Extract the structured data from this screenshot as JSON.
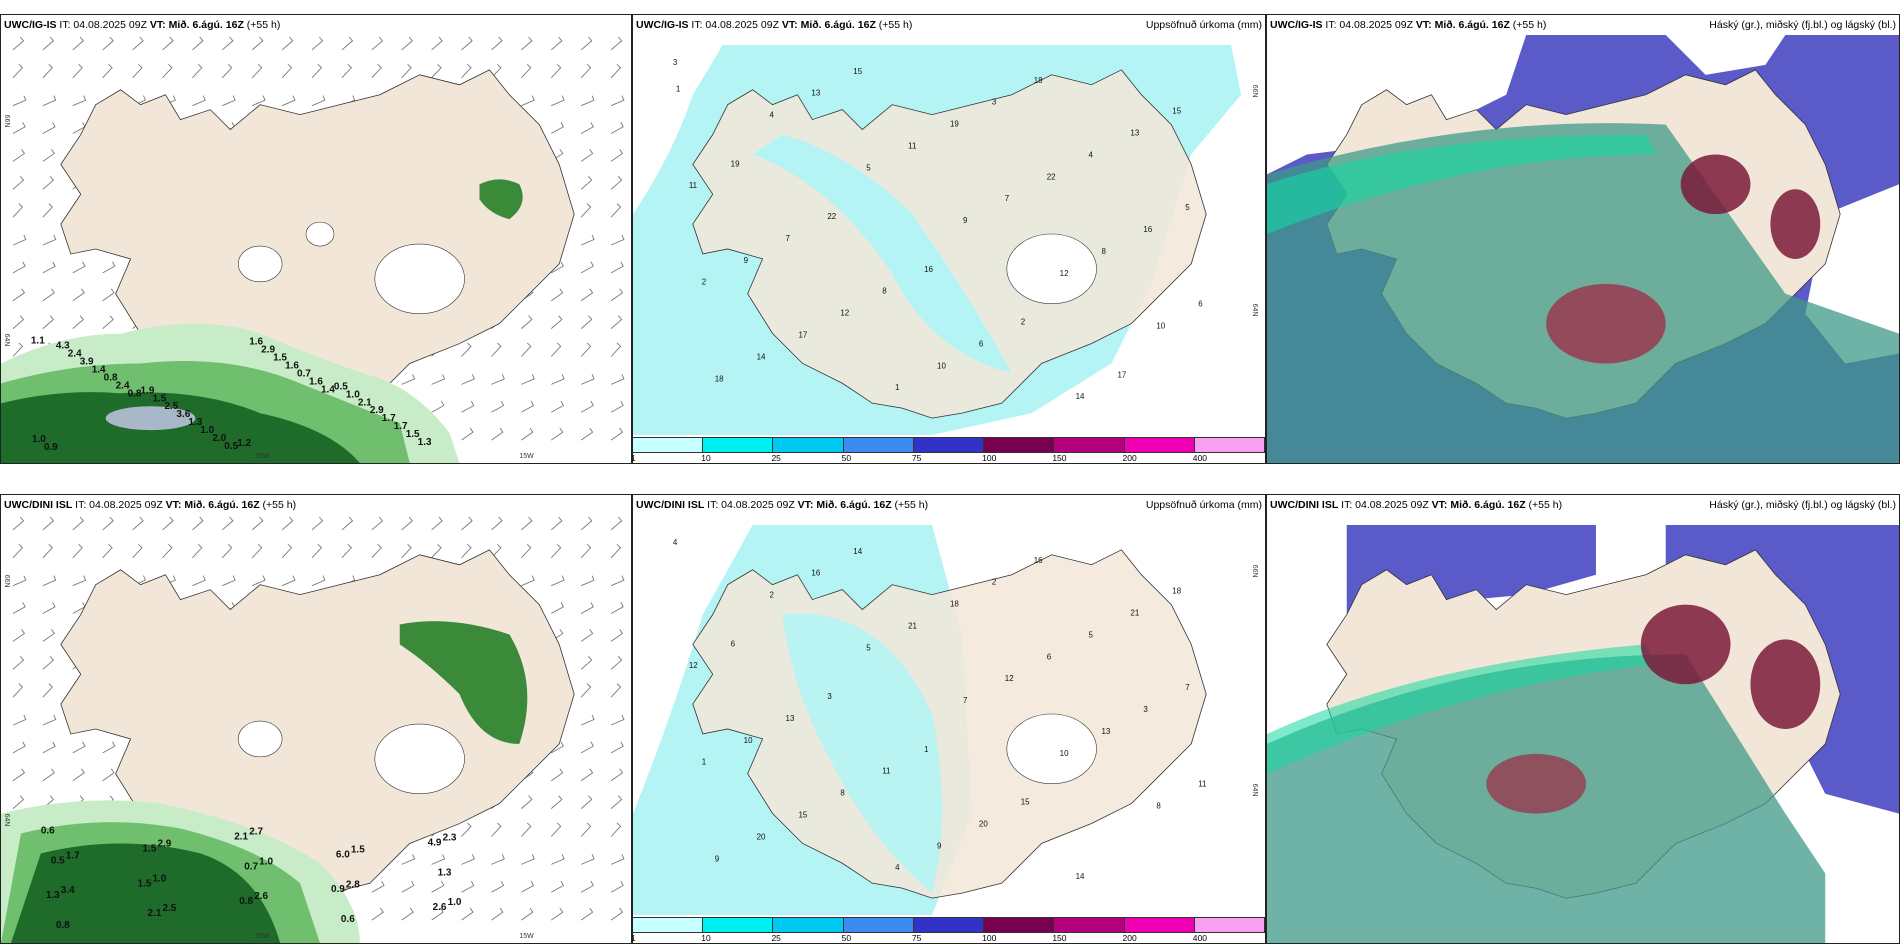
{
  "panels": [
    {
      "model": "UWC/IG-IS",
      "it": "IT: 04.08.2025 09Z",
      "vt": "VT: Mið. 6.ágú. 16Z",
      "lead": "(+55 h)",
      "title_right": ""
    },
    {
      "model": "UWC/IG-IS",
      "it": "IT: 04.08.2025 09Z",
      "vt": "VT: Mið. 6.ágú. 16Z",
      "lead": "(+55 h)",
      "title_right": "Uppsöfnuð úrkoma (mm)"
    },
    {
      "model": "UWC/IG-IS",
      "it": "IT: 04.08.2025 09Z",
      "vt": "VT: Mið. 6.ágú. 16Z",
      "lead": "(+55 h)",
      "title_right": "Háský (gr.), miðský (fj.bl.) og lágský (bl.)"
    },
    {
      "model": "UWC/DINI ISL",
      "it": "IT: 04.08.2025 09Z",
      "vt": "VT: Mið. 6.ágú. 16Z",
      "lead": "(+55 h)",
      "title_right": ""
    },
    {
      "model": "UWC/DINI ISL",
      "it": "IT: 04.08.2025 09Z",
      "vt": "VT: Mið. 6.ágú. 16Z",
      "lead": "(+55 h)",
      "title_right": "Uppsöfnuð úrkoma (mm)"
    },
    {
      "model": "UWC/DINI ISL",
      "it": "IT: 04.08.2025 09Z",
      "vt": "VT: Mið. 6.ágú. 16Z",
      "lead": "(+55 h)",
      "title_right": "Háský (gr.), miðský (fj.bl.) og lágský (bl.)"
    }
  ],
  "axis": {
    "lat_66": "66N",
    "lat_64": "64N",
    "lon_20": "20W",
    "lon_15": "15W"
  },
  "colorbar": {
    "labels": [
      "1",
      "10",
      "25",
      "50",
      "75",
      "100",
      "150",
      "200",
      "400"
    ],
    "colors": [
      "#c8ffff",
      "#00f0f0",
      "#00c8f0",
      "#3c8cf0",
      "#3232c8",
      "#780050",
      "#b4007c",
      "#f000b4",
      "#f8a0f0"
    ]
  },
  "precip_values_a": [
    "1.1",
    "0.8",
    "0.5",
    "1.4",
    "1.3",
    "2.4",
    "2.0",
    "1.6",
    "1.5",
    "0.8",
    "1.0",
    "0.7",
    "1.7",
    "1.4",
    "1.3",
    "1.6",
    "1.7",
    "3.9",
    "3.6",
    "1.5",
    "2.9",
    "2.4",
    "2.5",
    "2.9",
    "2.1",
    "4.3",
    "1.5",
    "1.6",
    "1.0",
    "0.9",
    "1.9",
    "1.2",
    "0.5",
    "1.0"
  ],
  "precip_values_b": [
    "0.6",
    "1.5",
    "2.1",
    "0.9",
    "4.9",
    "1.3",
    "1.5",
    "0.8",
    "6.0",
    "2.6",
    "0.5",
    "2.1",
    "0.7",
    "0.6",
    "1.3",
    "0.8",
    "1.0",
    "2.7",
    "2.8",
    "2.3",
    "3.4",
    "2.9",
    "2.6",
    "1.5",
    "1.0",
    "1.7",
    "2.5",
    "1.0"
  ],
  "accum_values_a": [
    "3",
    "4",
    "5",
    "9",
    "12",
    "10",
    "18",
    "13",
    "11",
    "7",
    "8",
    "6",
    "14",
    "15",
    "19",
    "22",
    "16",
    "2",
    "17",
    "1"
  ],
  "accum_values_b": [
    "4",
    "2",
    "5",
    "7",
    "10",
    "8",
    "9",
    "16",
    "21",
    "12",
    "13",
    "11",
    "20",
    "14",
    "18",
    "6",
    "3",
    "1",
    "15"
  ]
}
